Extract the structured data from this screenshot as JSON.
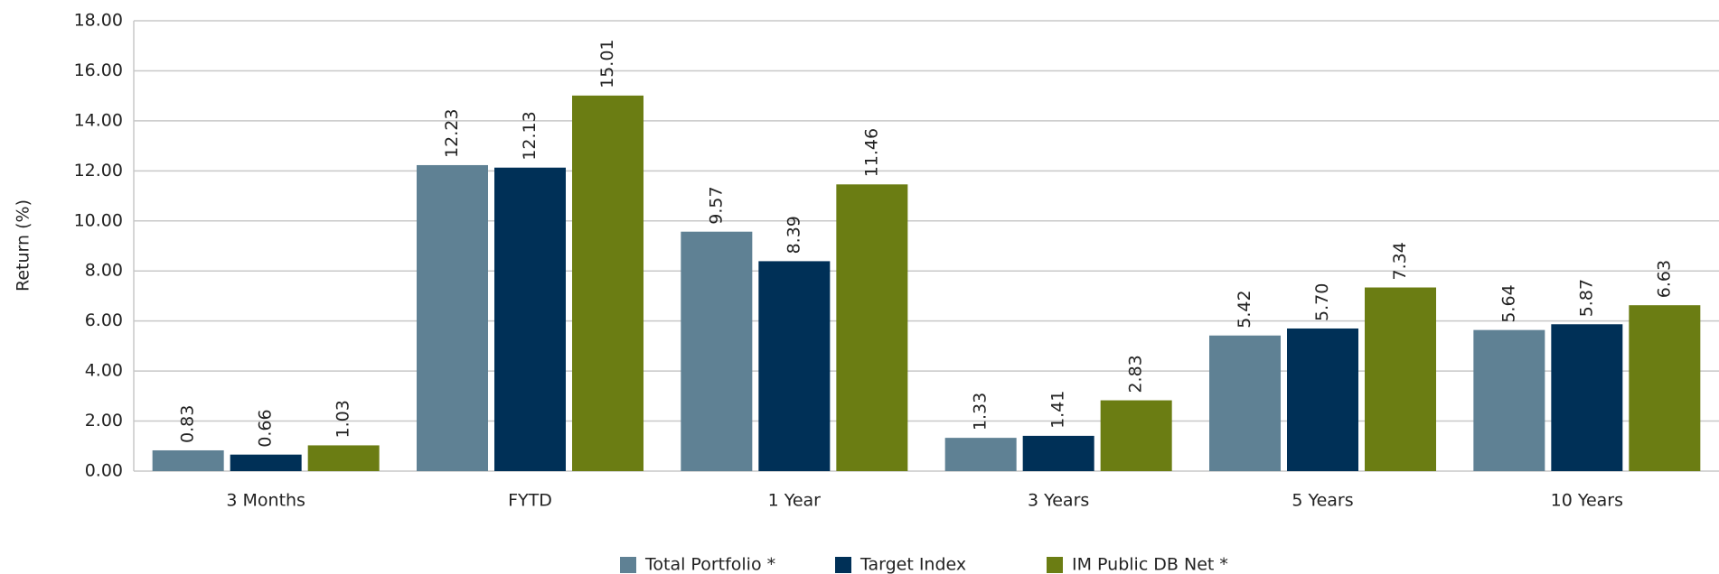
{
  "chart_data": {
    "type": "bar",
    "y_label": "Return (%)",
    "categories": [
      "3 Months",
      "FYTD",
      "1 Year",
      "3 Years",
      "5 Years",
      "10 Years"
    ],
    "series": [
      {
        "name": "Total Portfolio *",
        "color": "#5f8194",
        "values": [
          0.83,
          12.23,
          9.57,
          1.33,
          5.42,
          5.64
        ],
        "value_labels": [
          "0.83",
          "12.23",
          "9.57",
          "1.33",
          "5.42",
          "5.64"
        ]
      },
      {
        "name": "Target Index",
        "color": "#003057",
        "values": [
          0.66,
          12.13,
          8.39,
          1.41,
          5.7,
          5.87
        ],
        "value_labels": [
          "0.66",
          "12.13",
          "8.39",
          "1.41",
          "5.70",
          "5.87"
        ]
      },
      {
        "name": "IM Public DB Net *",
        "color": "#6b7d13",
        "values": [
          1.03,
          15.01,
          11.46,
          2.83,
          7.34,
          6.63
        ],
        "value_labels": [
          "1.03",
          "15.01",
          "11.46",
          "2.83",
          "7.34",
          "6.63"
        ]
      }
    ],
    "ylim": [
      0,
      18
    ],
    "yticks": [
      {
        "value": 0,
        "label": "0.00"
      },
      {
        "value": 2,
        "label": "2.00"
      },
      {
        "value": 4,
        "label": "4.00"
      },
      {
        "value": 6,
        "label": "6.00"
      },
      {
        "value": 8,
        "label": "8.00"
      },
      {
        "value": 10,
        "label": "10.00"
      },
      {
        "value": 12,
        "label": "12.00"
      },
      {
        "value": 14,
        "label": "14.00"
      },
      {
        "value": 16,
        "label": "16.00"
      },
      {
        "value": 18,
        "label": "18.00"
      }
    ],
    "grid": true,
    "legend": "bottom"
  }
}
